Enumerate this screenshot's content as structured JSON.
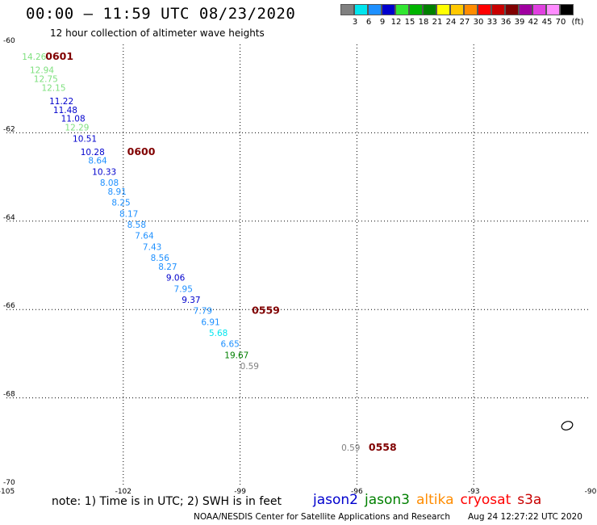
{
  "header": {
    "title": "00:00 – 11:59 UTC 08/23/2020",
    "subtitle": "12 hour collection of altimeter wave heights"
  },
  "colorbar": {
    "unit_label": "(ft)",
    "bins": [
      {
        "label": "3",
        "color": "#808080"
      },
      {
        "label": "6",
        "color": "#00e5ee"
      },
      {
        "label": "9",
        "color": "#1e90ff"
      },
      {
        "label": "12",
        "color": "#0000cd"
      },
      {
        "label": "15",
        "color": "#32e632"
      },
      {
        "label": "18",
        "color": "#00b400"
      },
      {
        "label": "21",
        "color": "#008000"
      },
      {
        "label": "24",
        "color": "#ffff00"
      },
      {
        "label": "27",
        "color": "#ffc800"
      },
      {
        "label": "30",
        "color": "#ff8c00"
      },
      {
        "label": "33",
        "color": "#ff0000"
      },
      {
        "label": "36",
        "color": "#c80000"
      },
      {
        "label": "39",
        "color": "#800000"
      },
      {
        "label": "42",
        "color": "#a000a0"
      },
      {
        "label": "45",
        "color": "#e040e0"
      },
      {
        "label": "70",
        "color": "#ff8cff"
      },
      {
        "label": "",
        "color": "#000000"
      }
    ]
  },
  "chart_data": {
    "type": "scatter",
    "xlim": [
      -105,
      -90
    ],
    "ylim": [
      -70,
      -60
    ],
    "x_ticks": [
      -105,
      -102,
      -99,
      -96,
      -93,
      -90
    ],
    "y_ticks": [
      -60,
      -62,
      -64,
      -66,
      -68,
      -70
    ],
    "x_tick_labels": [
      "-105",
      "-102",
      "-99",
      "-96",
      "-93",
      "-90"
    ],
    "y_tick_labels": [
      "-60",
      "-62",
      "-64",
      "-66",
      "-68",
      "-70"
    ],
    "grid": true,
    "points": [
      {
        "lon": -104.6,
        "lat": -60.35,
        "label": "14.26",
        "color": "#7fe07f"
      },
      {
        "lon": -104.4,
        "lat": -60.65,
        "label": "12.94",
        "color": "#7fe07f"
      },
      {
        "lon": -104.3,
        "lat": -60.85,
        "label": "12.75",
        "color": "#7fe07f"
      },
      {
        "lon": -104.1,
        "lat": -61.05,
        "label": "12.15",
        "color": "#7fe07f"
      },
      {
        "lon": -103.9,
        "lat": -61.35,
        "label": "11.22",
        "color": "#0000cd"
      },
      {
        "lon": -103.8,
        "lat": -61.55,
        "label": "11.48",
        "color": "#0000cd"
      },
      {
        "lon": -103.6,
        "lat": -61.75,
        "label": "11.08",
        "color": "#0000cd"
      },
      {
        "lon": -103.5,
        "lat": -61.95,
        "label": "12.29",
        "color": "#7fe07f"
      },
      {
        "lon": -103.3,
        "lat": -62.2,
        "label": "10.51",
        "color": "#0000cd"
      },
      {
        "lon": -103.1,
        "lat": -62.5,
        "label": "10.28",
        "color": "#0000cd"
      },
      {
        "lon": -102.9,
        "lat": -62.7,
        "label": "8.64",
        "color": "#1e90ff"
      },
      {
        "lon": -102.8,
        "lat": -62.95,
        "label": "10.33",
        "color": "#0000cd"
      },
      {
        "lon": -102.6,
        "lat": -63.2,
        "label": "8.08",
        "color": "#1e90ff"
      },
      {
        "lon": -102.4,
        "lat": -63.4,
        "label": "8.91",
        "color": "#1e90ff"
      },
      {
        "lon": -102.3,
        "lat": -63.65,
        "label": "8.25",
        "color": "#1e90ff"
      },
      {
        "lon": -102.1,
        "lat": -63.9,
        "label": "8.17",
        "color": "#1e90ff"
      },
      {
        "lon": -101.9,
        "lat": -64.15,
        "label": "8.58",
        "color": "#1e90ff"
      },
      {
        "lon": -101.7,
        "lat": -64.4,
        "label": "7.64",
        "color": "#1e90ff"
      },
      {
        "lon": -101.5,
        "lat": -64.65,
        "label": "7.43",
        "color": "#1e90ff"
      },
      {
        "lon": -101.3,
        "lat": -64.9,
        "label": "8.56",
        "color": "#1e90ff"
      },
      {
        "lon": -101.1,
        "lat": -65.1,
        "label": "8.27",
        "color": "#1e90ff"
      },
      {
        "lon": -100.9,
        "lat": -65.35,
        "label": "9.06",
        "color": "#0000cd"
      },
      {
        "lon": -100.7,
        "lat": -65.6,
        "label": "7.95",
        "color": "#1e90ff"
      },
      {
        "lon": -100.5,
        "lat": -65.85,
        "label": "9.37",
        "color": "#0000cd"
      },
      {
        "lon": -100.2,
        "lat": -66.1,
        "label": "7.79",
        "color": "#1e90ff"
      },
      {
        "lon": -100.0,
        "lat": -66.35,
        "label": "6.91",
        "color": "#1e90ff"
      },
      {
        "lon": -99.8,
        "lat": -66.6,
        "label": "5.68",
        "color": "#00e5ee"
      },
      {
        "lon": -99.5,
        "lat": -66.85,
        "label": "6.65",
        "color": "#1e90ff"
      },
      {
        "lon": -99.4,
        "lat": -67.1,
        "label": "19.67",
        "color": "#008000"
      },
      {
        "lon": -99.0,
        "lat": -67.35,
        "label": "0.59",
        "color": "#808080"
      },
      {
        "lon": -96.4,
        "lat": -69.2,
        "label": "0.59",
        "color": "#808080"
      }
    ],
    "time_labels": [
      {
        "lon": -104.0,
        "lat": -60.35,
        "label": "0601"
      },
      {
        "lon": -101.9,
        "lat": -62.5,
        "label": "0600"
      },
      {
        "lon": -98.7,
        "lat": -66.1,
        "label": "0559"
      },
      {
        "lon": -95.7,
        "lat": -69.2,
        "label": "0558"
      }
    ],
    "time_label_color": "#800000"
  },
  "footer": {
    "note": "note: 1) Time is in UTC; 2) SWH is in feet",
    "satellites": [
      {
        "name": "jason2",
        "color": "#0000cd"
      },
      {
        "name": "jason3",
        "color": "#008000"
      },
      {
        "name": "altika",
        "color": "#ff8c00"
      },
      {
        "name": "cryosat",
        "color": "#ff0000"
      },
      {
        "name": "s3a",
        "color": "#c80000"
      }
    ],
    "credit": "NOAA/NESDIS Center for Satellite Applications and Research",
    "timestamp": "Aug 24 12:27:22 UTC 2020"
  }
}
